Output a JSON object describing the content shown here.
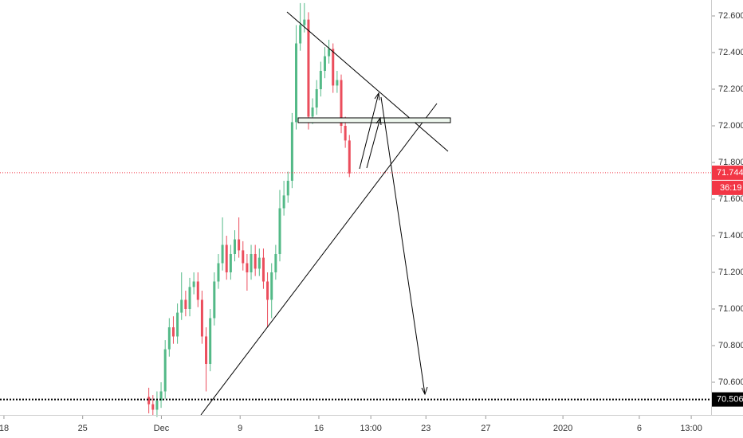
{
  "chart_data": {
    "type": "candlestick",
    "up_color": "#53b987",
    "down_color": "#eb4d5c",
    "x": [
      9.2,
      9.46,
      9.72,
      9.98,
      10.24,
      10.5,
      10.76,
      11.02,
      11.28,
      11.54,
      11.8,
      12.06,
      12.32,
      12.58,
      12.84,
      13.1,
      13.36,
      13.62,
      13.88,
      14.14,
      14.4,
      14.66,
      14.92,
      15.18,
      15.44,
      15.7,
      15.96,
      16.22,
      16.48,
      16.74,
      17.0,
      17.26,
      17.52,
      17.78,
      18.04,
      18.3,
      18.56,
      18.82,
      19.08,
      19.34,
      19.6,
      19.86,
      20.12,
      20.38,
      20.64,
      20.9,
      21.16,
      21.42,
      21.68,
      21.94
    ],
    "open": [
      70.52,
      70.48,
      70.45,
      70.5,
      70.55,
      70.78,
      70.9,
      70.85,
      70.98,
      71.05,
      71.0,
      71.12,
      71.15,
      71.05,
      70.85,
      70.7,
      70.95,
      71.15,
      71.25,
      71.35,
      71.2,
      71.3,
      71.38,
      71.32,
      71.25,
      71.2,
      71.3,
      71.22,
      71.28,
      71.15,
      71.05,
      71.2,
      71.3,
      71.55,
      71.62,
      71.7,
      72.02,
      72.45,
      72.55,
      72.58,
      72.05,
      72.1,
      72.2,
      72.3,
      72.38,
      72.42,
      72.22,
      72.25,
      72.0,
      71.92
    ],
    "high": [
      70.57,
      70.53,
      70.55,
      70.6,
      70.83,
      70.95,
      70.96,
      71.03,
      71.2,
      71.1,
      71.17,
      71.2,
      71.2,
      71.1,
      70.9,
      71.0,
      71.2,
      71.3,
      71.5,
      71.4,
      71.35,
      71.43,
      71.5,
      71.37,
      71.3,
      71.35,
      71.35,
      71.33,
      71.33,
      71.2,
      71.25,
      71.35,
      71.65,
      71.7,
      71.75,
      72.07,
      72.55,
      72.67,
      72.67,
      72.62,
      72.15,
      72.25,
      72.35,
      72.43,
      72.47,
      72.45,
      72.3,
      72.28,
      72.05,
      71.95
    ],
    "low": [
      70.43,
      70.42,
      70.41,
      70.46,
      70.51,
      70.74,
      70.81,
      70.81,
      70.94,
      70.96,
      70.96,
      71.08,
      71.01,
      70.81,
      70.55,
      70.66,
      70.91,
      71.11,
      71.21,
      71.16,
      71.16,
      71.26,
      71.28,
      71.21,
      71.1,
      71.16,
      71.18,
      71.18,
      71.11,
      70.9,
      70.95,
      71.16,
      71.26,
      71.51,
      71.58,
      71.66,
      71.98,
      72.41,
      72.51,
      71.98,
      72.01,
      72.06,
      72.16,
      72.26,
      72.34,
      72.18,
      72.18,
      71.96,
      71.88,
      71.72
    ],
    "close": [
      70.48,
      70.45,
      70.5,
      70.55,
      70.78,
      70.9,
      70.85,
      70.98,
      71.05,
      71.0,
      71.12,
      71.15,
      71.05,
      70.85,
      70.7,
      70.95,
      71.15,
      71.25,
      71.35,
      71.2,
      71.3,
      71.38,
      71.32,
      71.25,
      71.2,
      71.3,
      71.22,
      71.28,
      71.15,
      71.05,
      71.2,
      71.3,
      71.55,
      71.62,
      71.7,
      72.02,
      72.45,
      72.55,
      72.58,
      72.05,
      72.1,
      72.2,
      72.3,
      72.38,
      72.42,
      72.22,
      72.25,
      72.0,
      71.92,
      71.74
    ],
    "xlim": [
      -0.25,
      44.81
    ],
    "ylim": [
      70.426,
      72.687
    ],
    "xticks": [
      {
        "value": 0,
        "label": "18"
      },
      {
        "value": 5,
        "label": "25"
      },
      {
        "value": 10,
        "label": "Dec"
      },
      {
        "value": 15,
        "label": "9"
      },
      {
        "value": 20,
        "label": "16"
      },
      {
        "value": 23.3,
        "label": "13:00"
      },
      {
        "value": 26.8,
        "label": "23"
      },
      {
        "value": 30.6,
        "label": "27"
      },
      {
        "value": 35.5,
        "label": "2020"
      },
      {
        "value": 40.35,
        "label": "6"
      },
      {
        "value": 43.65,
        "label": "13:00"
      }
    ],
    "yticks": [
      {
        "value": 72.6,
        "label": "72.600"
      },
      {
        "value": 72.4,
        "label": "72.400"
      },
      {
        "value": 72.2,
        "label": "72.200"
      },
      {
        "value": 72.0,
        "label": "72.000"
      },
      {
        "value": 71.8,
        "label": "71.800"
      },
      {
        "value": 71.6,
        "label": "71.600"
      },
      {
        "value": 71.4,
        "label": "71.400"
      },
      {
        "value": 71.2,
        "label": "71.200"
      },
      {
        "value": 71.0,
        "label": "71.000"
      },
      {
        "value": 70.8,
        "label": "70.800"
      },
      {
        "value": 70.6,
        "label": "70.600"
      }
    ],
    "price_lines": [
      {
        "value": 71.744,
        "label": "71.744",
        "color": "#f23645",
        "countdown": "36:19"
      },
      {
        "value": 70.506,
        "label": "70.506",
        "color": "#000000"
      }
    ]
  }
}
